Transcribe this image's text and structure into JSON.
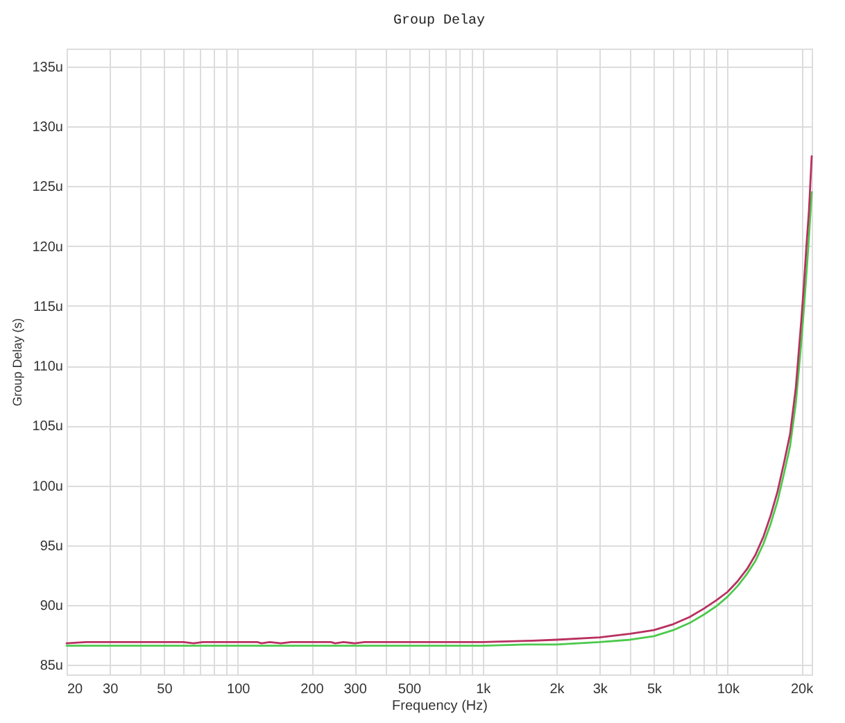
{
  "chart_data": {
    "type": "line",
    "title": "Group Delay",
    "xlabel": "Frequency (Hz)",
    "ylabel": "Group Delay (s)",
    "log": "x",
    "grid": true,
    "xlim": [
      20,
      22050
    ],
    "xticks": [
      20,
      30,
      {
        "value": 40,
        "label": null
      },
      50,
      {
        "value": 60,
        "label": null
      },
      {
        "value": 70,
        "label": null
      },
      {
        "value": 80,
        "label": null
      },
      {
        "value": 90,
        "label": null
      },
      100,
      200,
      300,
      {
        "value": 400,
        "label": null
      },
      500,
      {
        "value": 600,
        "label": null
      },
      {
        "value": 700,
        "label": null
      },
      {
        "value": 800,
        "label": null
      },
      {
        "value": 900,
        "label": null
      },
      {
        "value": 1000,
        "label": "1k"
      },
      {
        "value": 2000,
        "label": "2k"
      },
      {
        "value": 3000,
        "label": "3k"
      },
      {
        "value": 4000,
        "label": null
      },
      {
        "value": 5000,
        "label": "5k"
      },
      {
        "value": 6000,
        "label": null
      },
      {
        "value": 7000,
        "label": null
      },
      {
        "value": 8000,
        "label": null
      },
      {
        "value": 9000,
        "label": null
      },
      {
        "value": 10000,
        "label": "10k"
      },
      {
        "value": 20000,
        "label": "20k"
      }
    ],
    "ylim": [
      84.2,
      136.5
    ],
    "yticks": [
      {
        "value": 85,
        "label": "85u"
      },
      {
        "value": 90,
        "label": "90u"
      },
      {
        "value": 95,
        "label": "95u"
      },
      {
        "value": 100,
        "label": "100u"
      },
      {
        "value": 105,
        "label": "105u"
      },
      {
        "value": 110,
        "label": "110u"
      },
      {
        "value": 115,
        "label": "115u"
      },
      {
        "value": 120,
        "label": "120u"
      },
      {
        "value": 125,
        "label": "125u"
      },
      {
        "value": 130,
        "label": "130u"
      },
      {
        "value": 135,
        "label": "135u"
      }
    ],
    "series": [
      {
        "color": "#b83060",
        "x": [
          20,
          24,
          30,
          60,
          66,
          72,
          120,
          125,
          135,
          150,
          165,
          240,
          250,
          270,
          300,
          330,
          1000,
          1500,
          2000,
          3000,
          4000,
          5000,
          6000,
          7000,
          8000,
          9000,
          10000,
          11000,
          12000,
          13000,
          14000,
          15000,
          16000,
          17000,
          18000,
          19000,
          20000,
          20500,
          21000,
          21500,
          22050
        ],
        "values": [
          86.8,
          86.9,
          86.9,
          86.9,
          86.8,
          86.9,
          86.9,
          86.8,
          86.9,
          86.8,
          86.9,
          86.9,
          86.8,
          86.9,
          86.8,
          86.9,
          86.9,
          87.0,
          87.1,
          87.3,
          87.6,
          87.9,
          88.4,
          89.0,
          89.7,
          90.4,
          91.1,
          92.0,
          93.0,
          94.2,
          95.7,
          97.5,
          99.5,
          101.9,
          104.3,
          108.2,
          113.8,
          116.8,
          120.1,
          123.0,
          127.5
        ]
      },
      {
        "color": "#4cc94c",
        "x": [
          20,
          1000,
          1500,
          2000,
          3000,
          4000,
          5000,
          6000,
          7000,
          8000,
          9000,
          10000,
          11000,
          12000,
          13000,
          14000,
          15000,
          16000,
          17000,
          18000,
          19000,
          20000,
          20500,
          21000,
          21500,
          22050
        ],
        "values": [
          86.6,
          86.6,
          86.7,
          86.7,
          86.9,
          87.1,
          87.4,
          87.9,
          88.5,
          89.2,
          89.9,
          90.7,
          91.6,
          92.6,
          93.7,
          95.1,
          96.8,
          98.7,
          101.0,
          103.3,
          106.9,
          112.0,
          114.8,
          117.8,
          120.8,
          124.5
        ]
      }
    ]
  }
}
